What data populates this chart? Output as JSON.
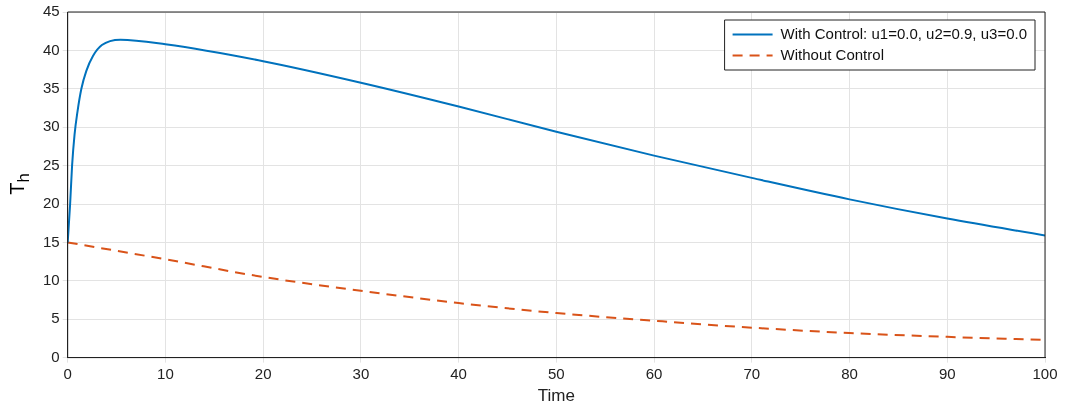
{
  "chart_data": {
    "type": "line",
    "xlabel": "Time",
    "ylabel": "T$_{h}$",
    "xlim": [
      0,
      100
    ],
    "xticks": [
      0,
      10,
      20,
      30,
      40,
      50,
      60,
      70,
      80,
      90,
      100
    ],
    "ylim": [
      0,
      45
    ],
    "yticks": [
      0,
      5,
      10,
      15,
      20,
      25,
      30,
      35,
      40,
      45
    ],
    "grid": true,
    "legend": "top right",
    "marker": "none",
    "series": [
      {
        "name": "With Control: u1=0.0, u2=0.9, u3=0.0",
        "color": "#0072bd",
        "line_style": "solid",
        "x": [
          0,
          0.25,
          0.45,
          0.7,
          1,
          1.4,
          1.9,
          2.6,
          3.5,
          5.4,
          10,
          20,
          30,
          40,
          50,
          60,
          70,
          80,
          90,
          100
        ],
        "values": [
          15,
          20,
          25,
          29,
          32,
          35,
          37.3,
          39.3,
          40.7,
          41.4,
          40.8,
          38.6,
          35.8,
          32.7,
          29.4,
          26.3,
          23.4,
          20.6,
          18.1,
          15.9
        ]
      },
      {
        "name": "Without Control",
        "color": "#d95319",
        "line_style": "dashed",
        "x": [
          0,
          10,
          20,
          30,
          40,
          50,
          60,
          70,
          80,
          90,
          100
        ],
        "values": [
          15,
          12.8,
          10.5,
          8.7,
          7.1,
          5.8,
          4.8,
          3.9,
          3.2,
          2.7,
          2.3
        ]
      }
    ]
  }
}
